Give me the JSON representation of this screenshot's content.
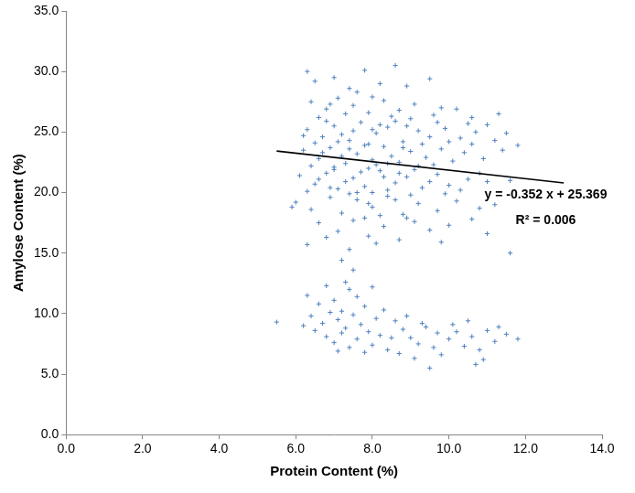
{
  "chart_data": {
    "type": "scatter",
    "x_label": "Protein Content (%)",
    "y_label": "Amylose Content (%)",
    "series": [
      {
        "type": "scatter",
        "color": "#4f81bd",
        "marker": "plus",
        "x": [
          6.3,
          6.5,
          7.0,
          7.4,
          7.8,
          8.2,
          8.6,
          8.9,
          9.5,
          7.6,
          6.4,
          6.8,
          7.1,
          7.5,
          7.9,
          8.3,
          8.7,
          9.1,
          9.6,
          10.2,
          6.6,
          7.3,
          8.0,
          8.5,
          9.0,
          9.8,
          10.6,
          11.0,
          11.3,
          6.9,
          6.3,
          6.7,
          7.0,
          7.4,
          7.7,
          8.1,
          8.4,
          8.8,
          9.2,
          9.5,
          9.9,
          10.3,
          10.7,
          11.2,
          6.5,
          7.2,
          7.9,
          8.6,
          9.3,
          10.0,
          6.2,
          6.8,
          7.5,
          8.2,
          8.9,
          9.7,
          10.5,
          11.5,
          7.1,
          8.0,
          6.2,
          6.6,
          6.9,
          7.3,
          7.6,
          8.0,
          8.3,
          8.7,
          9.0,
          9.4,
          9.8,
          10.1,
          10.4,
          10.9,
          11.4,
          6.4,
          7.0,
          7.8,
          8.5,
          9.2,
          6.7,
          7.4,
          8.1,
          8.8,
          9.6,
          10.6,
          7.2,
          7.9,
          8.4,
          11.8,
          6.1,
          6.5,
          6.8,
          7.1,
          7.5,
          7.8,
          8.2,
          8.6,
          8.9,
          9.3,
          9.7,
          10.0,
          10.5,
          11.0,
          6.3,
          7.0,
          7.7,
          8.4,
          9.1,
          10.3,
          6.6,
          7.3,
          8.0,
          8.7,
          9.5,
          10.8,
          7.6,
          11.6,
          6.9,
          8.3,
          6.0,
          6.4,
          6.9,
          7.2,
          7.6,
          8.0,
          8.4,
          8.8,
          9.2,
          9.7,
          10.2,
          10.8,
          5.9,
          7.4,
          8.2,
          9.0,
          9.9,
          11.2,
          7.9,
          8.6,
          6.6,
          7.1,
          7.5,
          7.9,
          8.3,
          8.7,
          9.1,
          9.5,
          10.0,
          8.1,
          7.4,
          6.8,
          9.8,
          11.6,
          10.6,
          11.0,
          7.8,
          8.9,
          6.3,
          7.2,
          7.5,
          7.3,
          5.5,
          6.3,
          6.6,
          6.8,
          7.0,
          7.2,
          7.4,
          7.6,
          7.8,
          8.0,
          6.4,
          6.7,
          6.9,
          7.1,
          7.3,
          7.5,
          7.7,
          7.9,
          8.1,
          8.3,
          6.5,
          6.8,
          7.0,
          7.2,
          7.4,
          7.6,
          7.8,
          8.0,
          8.2,
          8.4,
          8.6,
          8.8,
          9.0,
          9.2,
          9.4,
          9.6,
          9.8,
          10.0,
          10.2,
          10.4,
          10.6,
          10.8,
          11.0,
          11.2,
          11.5,
          11.8,
          10.9,
          9.5,
          10.7,
          9.1,
          8.5,
          8.9,
          9.3,
          9.7,
          10.1,
          10.5,
          11.3,
          8.7,
          7.1,
          6.2
        ],
        "values": [
          30.0,
          29.2,
          29.5,
          28.6,
          30.1,
          29.0,
          30.5,
          28.8,
          29.4,
          28.3,
          27.5,
          26.9,
          27.8,
          27.2,
          26.6,
          27.6,
          26.8,
          27.3,
          26.4,
          26.9,
          26.2,
          26.5,
          27.9,
          26.3,
          26.1,
          27.0,
          26.2,
          25.6,
          26.5,
          27.3,
          25.2,
          24.6,
          25.5,
          24.3,
          25.8,
          24.9,
          25.4,
          24.2,
          25.1,
          24.6,
          25.3,
          24.5,
          25.0,
          24.3,
          24.1,
          24.8,
          24.0,
          25.9,
          24.0,
          24.2,
          24.7,
          25.9,
          25.1,
          25.6,
          25.5,
          25.8,
          25.7,
          24.9,
          24.2,
          25.2,
          23.5,
          22.8,
          23.7,
          22.4,
          23.2,
          22.7,
          23.8,
          22.5,
          23.4,
          22.9,
          23.6,
          22.6,
          23.3,
          22.8,
          23.5,
          22.2,
          22.1,
          23.9,
          23.0,
          22.2,
          23.3,
          23.6,
          22.3,
          23.7,
          22.3,
          24.0,
          23.0,
          22.0,
          22.4,
          23.9,
          21.4,
          20.7,
          21.6,
          20.3,
          21.2,
          20.5,
          21.8,
          20.8,
          21.3,
          20.4,
          21.5,
          20.6,
          21.1,
          20.9,
          20.1,
          21.9,
          21.7,
          20.2,
          21.9,
          20.2,
          21.1,
          20.9,
          20.0,
          21.6,
          20.9,
          21.6,
          20.0,
          21.0,
          20.4,
          21.3,
          19.2,
          18.6,
          19.6,
          18.3,
          19.4,
          18.8,
          19.7,
          18.2,
          19.1,
          18.5,
          19.3,
          18.7,
          18.8,
          19.9,
          18.1,
          19.8,
          19.9,
          19.0,
          19.1,
          19.4,
          17.5,
          16.8,
          17.7,
          16.4,
          17.2,
          16.1,
          17.6,
          16.9,
          17.3,
          15.8,
          15.3,
          16.3,
          15.9,
          15.0,
          17.8,
          16.6,
          17.9,
          17.9,
          15.7,
          14.4,
          13.6,
          12.6,
          9.3,
          11.5,
          10.8,
          12.3,
          11.1,
          10.2,
          12.0,
          11.4,
          10.6,
          12.2,
          9.8,
          9.2,
          10.1,
          9.5,
          8.8,
          9.9,
          9.1,
          8.5,
          9.6,
          10.3,
          8.6,
          8.1,
          7.6,
          8.4,
          7.2,
          7.9,
          6.8,
          7.4,
          8.2,
          7.0,
          9.4,
          8.7,
          8.0,
          7.5,
          8.9,
          7.2,
          6.6,
          7.9,
          8.5,
          7.3,
          8.1,
          7.0,
          8.6,
          7.7,
          8.3,
          7.9,
          6.2,
          5.5,
          5.8,
          6.3,
          8.0,
          9.8,
          9.2,
          8.4,
          9.1,
          9.4,
          8.9,
          6.7,
          6.9,
          9.0
        ]
      },
      {
        "type": "line",
        "color": "#000000",
        "x": [
          5.5,
          13.0
        ],
        "values": [
          23.433,
          20.793
        ]
      }
    ],
    "annotations": [
      "y = -0.352 x + 25.369",
      "R² = 0.006"
    ],
    "xlim": [
      0,
      14
    ],
    "xticks": [
      {
        "value": 0,
        "label": "0.0"
      },
      {
        "value": 2,
        "label": "2.0"
      },
      {
        "value": 4,
        "label": "4.0"
      },
      {
        "value": 6,
        "label": "6.0"
      },
      {
        "value": 8,
        "label": "8.0"
      },
      {
        "value": 10,
        "label": "10.0"
      },
      {
        "value": 12,
        "label": "12.0"
      },
      {
        "value": 14,
        "label": "14.0"
      }
    ],
    "ylim": [
      0,
      35
    ],
    "yticks": [
      {
        "value": 0,
        "label": "0.0"
      },
      {
        "value": 5,
        "label": "5.0"
      },
      {
        "value": 10,
        "label": "10.0"
      },
      {
        "value": 15,
        "label": "15.0"
      },
      {
        "value": 20,
        "label": "20.0"
      },
      {
        "value": 25,
        "label": "25.0"
      },
      {
        "value": 30,
        "label": "30.0"
      },
      {
        "value": 35,
        "label": "35.0"
      }
    ],
    "grid": false
  }
}
